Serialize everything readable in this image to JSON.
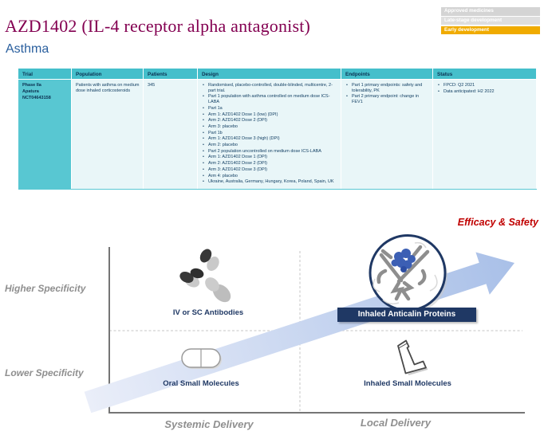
{
  "header": {
    "title": "AZD1402 (IL-4 receptor alpha antagonist)",
    "subtitle": "Asthma",
    "stage_badges": [
      {
        "label": "Approved medicines",
        "bg": "#d4d4d4"
      },
      {
        "label": "Late-stage development",
        "bg": "#dedede"
      },
      {
        "label": "Early development",
        "bg": "#f0ab00"
      }
    ]
  },
  "table": {
    "columns": [
      "Trial",
      "Population",
      "Patients",
      "Design",
      "Endpoints",
      "Status"
    ],
    "row": {
      "trial": {
        "phase": "Phase IIa",
        "name": "Apatura",
        "nct": "NCT04643158"
      },
      "population": "Patients with asthma on medium dose inhaled corticosteroids",
      "patients": "345",
      "design": [
        "Randomised, placebo-controlled, double-blinded, multicentre, 2-part trial.",
        "Part 1 population with asthma controlled on medium dose ICS-LABA",
        "Part 1a",
        "Arm 1: AZD1402 Dose 1 (low) (DPI)",
        "Arm 2: AZD1402 Dose 2 (DPI)",
        "Arm 3: placebo",
        "Part 1b",
        "Arm 1: AZD1402 Dose 3 (high) (DPI)",
        "Arm 2: placebo",
        "Part 2 population uncontrolled on medium dose ICS-LABA",
        "Arm 1: AZD1402 Dose 1 (DPI)",
        "Arm 2: AZD1402 Dose 2 (DPI)",
        "Arm 3: AZD1402 Dose 3 (DPI)",
        "Arm 4: placebo",
        "Ukraine, Australia, Germany, Hungary, Korea, Poland, Spain, UK"
      ],
      "endpoints": [
        "Part 1 primary endpoints: safety and tolerability, PK",
        "Part 2 primary endpoint: change in FEV1"
      ],
      "status": [
        "FPCD: Q2 2021",
        "Data anticipated: H2 2022"
      ]
    }
  },
  "diagram": {
    "efficacy_label": "Efficacy & Safety",
    "y_axis_top": "Higher Specificity",
    "y_axis_bottom": "Lower Specificity",
    "x_axis_left": "Systemic Delivery",
    "x_axis_right": "Local Delivery",
    "quadrants": {
      "top_left": "IV or SC Antibodies",
      "top_right": "Inhaled Anticalin Proteins",
      "bottom_left": "Oral Small Molecules",
      "bottom_right": "Inhaled Small Molecules"
    }
  },
  "colors": {
    "title_mulberry": "#830051",
    "subtitle_blue": "#2a5f9e",
    "table_header_teal": "#45bfcb",
    "table_accent_teal": "#58c7d2",
    "table_cell_ice": "#e9f6f8",
    "navy": "#1f3864",
    "efficacy_red": "#c00000",
    "early_dev_gold": "#f0ab00",
    "arrow_blue": "#a9c0e8"
  }
}
